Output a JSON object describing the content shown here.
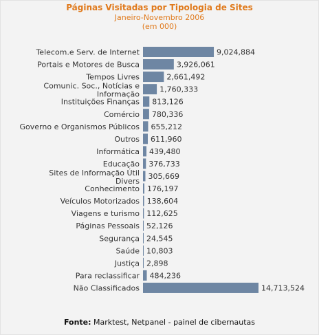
{
  "chart_data": {
    "type": "bar",
    "orientation": "horizontal",
    "title": "Páginas Visitadas por Tipologia de Sites",
    "subtitle": "Janeiro-Novembro 2006",
    "unit_note": "(em 000)",
    "categories": [
      "Telecom.e Serv. de Internet",
      "Portais e Motores de Busca",
      "Tempos Livres",
      "Comunic. Soc., Notícias e Informação",
      "Instituições Finanças",
      "Comércio",
      "Governo e Organismos Públicos",
      "Outros",
      "Informática",
      "Educação",
      "Sites de Informação Útil Divers",
      "Conhecimento",
      "Veículos Motorizados",
      "Viagens e turismo",
      "Páginas Pessoais",
      "Segurança",
      "Saúde",
      "Justiça",
      "Para reclassificar",
      "Não Classificados"
    ],
    "values": [
      9024884,
      3926061,
      2661492,
      1760333,
      813126,
      780336,
      655212,
      611960,
      439480,
      376733,
      305669,
      176197,
      138604,
      112625,
      52126,
      24545,
      10803,
      2898,
      484236,
      14713524
    ],
    "value_labels": [
      "9,024,884",
      "3,926,061",
      "2,661,492",
      "1,760,333",
      "813,126",
      "780,336",
      "655,212",
      "611,960",
      "439,480",
      "376,733",
      "305,669",
      "176,197",
      "138,604",
      "112,625",
      "52,126",
      "24,545",
      "10,803",
      "2,898",
      "484,236",
      "14,713,524"
    ],
    "bar_color": "#6e86a3",
    "grid": false
  },
  "source": {
    "label": "Fonte:",
    "text": "Marktest, Netpanel - painel de cibernautas"
  }
}
